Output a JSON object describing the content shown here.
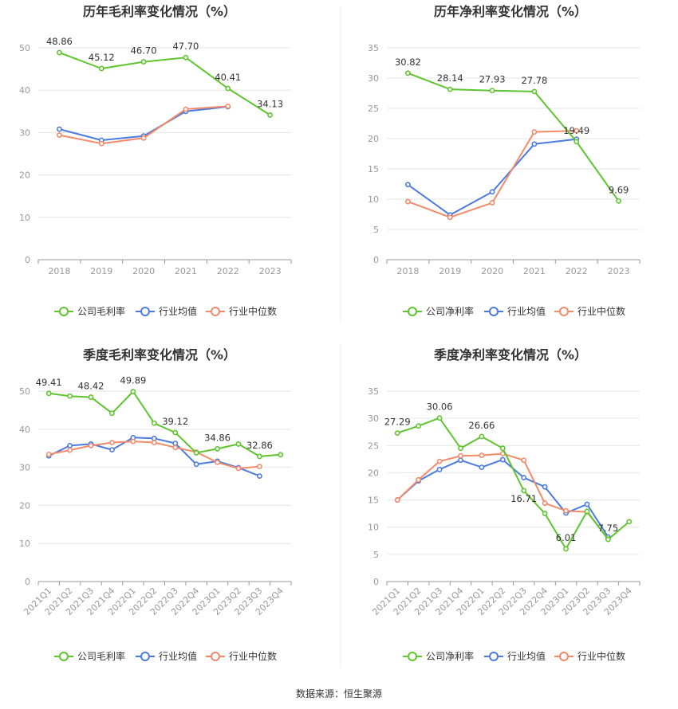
{
  "footer": {
    "source": "数据来源：恒生聚源"
  },
  "colors": {
    "company": "#5ec52f",
    "industry_avg": "#4c7be0",
    "industry_median": "#f38a6a"
  },
  "chart_data": [
    {
      "type": "line",
      "title": "历年毛利率变化情况（%）",
      "categories": [
        "2018",
        "2019",
        "2020",
        "2021",
        "2022",
        "2023"
      ],
      "ylim": [
        0,
        50
      ],
      "yticks": [
        0,
        10,
        20,
        30,
        40,
        50
      ],
      "grid": true,
      "legend_position": "bottom",
      "series": [
        {
          "name": "公司毛利率",
          "values": [
            48.86,
            45.12,
            46.7,
            47.7,
            40.41,
            34.13
          ],
          "labels": [
            "48.86",
            "45.12",
            "46.70",
            "47.70",
            "40.41",
            "34.13"
          ]
        },
        {
          "name": "行业均值",
          "values": [
            30.8,
            28.2,
            29.2,
            35.0,
            36.1,
            null
          ]
        },
        {
          "name": "行业中位数",
          "values": [
            29.4,
            27.4,
            28.7,
            35.5,
            36.2,
            null
          ]
        }
      ]
    },
    {
      "type": "line",
      "title": "历年净利率变化情况（%）",
      "categories": [
        "2018",
        "2019",
        "2020",
        "2021",
        "2022",
        "2023"
      ],
      "ylim": [
        0,
        35
      ],
      "yticks": [
        0,
        5,
        10,
        15,
        20,
        25,
        30,
        35
      ],
      "grid": true,
      "legend_position": "bottom",
      "series": [
        {
          "name": "公司净利率",
          "values": [
            30.82,
            28.14,
            27.93,
            27.78,
            19.49,
            9.69
          ],
          "labels": [
            "30.82",
            "28.14",
            "27.93",
            "27.78",
            "19.49",
            "9.69"
          ]
        },
        {
          "name": "行业均值",
          "values": [
            12.4,
            7.4,
            11.2,
            19.1,
            19.9,
            null
          ]
        },
        {
          "name": "行业中位数",
          "values": [
            9.6,
            7.0,
            9.4,
            21.1,
            21.3,
            null
          ]
        }
      ]
    },
    {
      "type": "line",
      "title": "季度毛利率变化情况（%）",
      "categories": [
        "2021Q1",
        "2021Q2",
        "2021Q3",
        "2021Q4",
        "2022Q1",
        "2022Q2",
        "2022Q3",
        "2022Q4",
        "2023Q1",
        "2023Q2",
        "2023Q3",
        "2023Q4"
      ],
      "ylim": [
        0,
        50
      ],
      "yticks": [
        0,
        10,
        20,
        30,
        40,
        50
      ],
      "grid": true,
      "legend_position": "bottom",
      "series": [
        {
          "name": "公司毛利率",
          "values": [
            49.41,
            48.7,
            48.42,
            44.2,
            49.89,
            41.6,
            39.12,
            33.8,
            34.86,
            36.1,
            32.86,
            33.3
          ],
          "labels": [
            "49.41",
            "",
            "48.42",
            "",
            "49.89",
            "",
            "39.12",
            "",
            "34.86",
            "",
            "32.86",
            ""
          ]
        },
        {
          "name": "行业均值",
          "values": [
            33.0,
            35.7,
            36.1,
            34.6,
            37.8,
            37.6,
            36.3,
            30.8,
            31.6,
            29.9,
            27.7,
            null
          ]
        },
        {
          "name": "行业中位数",
          "values": [
            33.4,
            34.5,
            35.7,
            36.5,
            36.8,
            36.5,
            35.2,
            34.0,
            31.3,
            29.7,
            30.2,
            null
          ]
        }
      ]
    },
    {
      "type": "line",
      "title": "季度净利率变化情况（%）",
      "categories": [
        "2021Q1",
        "2021Q2",
        "2021Q3",
        "2021Q4",
        "2022Q1",
        "2022Q2",
        "2022Q3",
        "2022Q4",
        "2023Q1",
        "2023Q2",
        "2023Q3",
        "2023Q4"
      ],
      "ylim": [
        0,
        35
      ],
      "yticks": [
        0,
        5,
        10,
        15,
        20,
        25,
        30,
        35
      ],
      "grid": true,
      "legend_position": "bottom",
      "series": [
        {
          "name": "公司净利率",
          "values": [
            27.29,
            28.6,
            30.06,
            24.5,
            26.66,
            24.5,
            16.71,
            12.5,
            6.01,
            12.9,
            7.75,
            11.0
          ],
          "labels": [
            "27.29",
            "",
            "30.06",
            "",
            "26.66",
            "",
            "16.71",
            "",
            "6.01",
            "",
            "7.75",
            ""
          ]
        },
        {
          "name": "行业均值",
          "values": [
            15.0,
            18.5,
            20.6,
            22.3,
            21.0,
            22.4,
            19.1,
            17.4,
            12.6,
            14.2,
            8.2,
            null
          ]
        },
        {
          "name": "行业中位数",
          "values": [
            15.0,
            18.7,
            22.1,
            23.1,
            23.2,
            23.5,
            22.3,
            14.4,
            13.0,
            12.8,
            7.8,
            null
          ]
        }
      ]
    }
  ]
}
